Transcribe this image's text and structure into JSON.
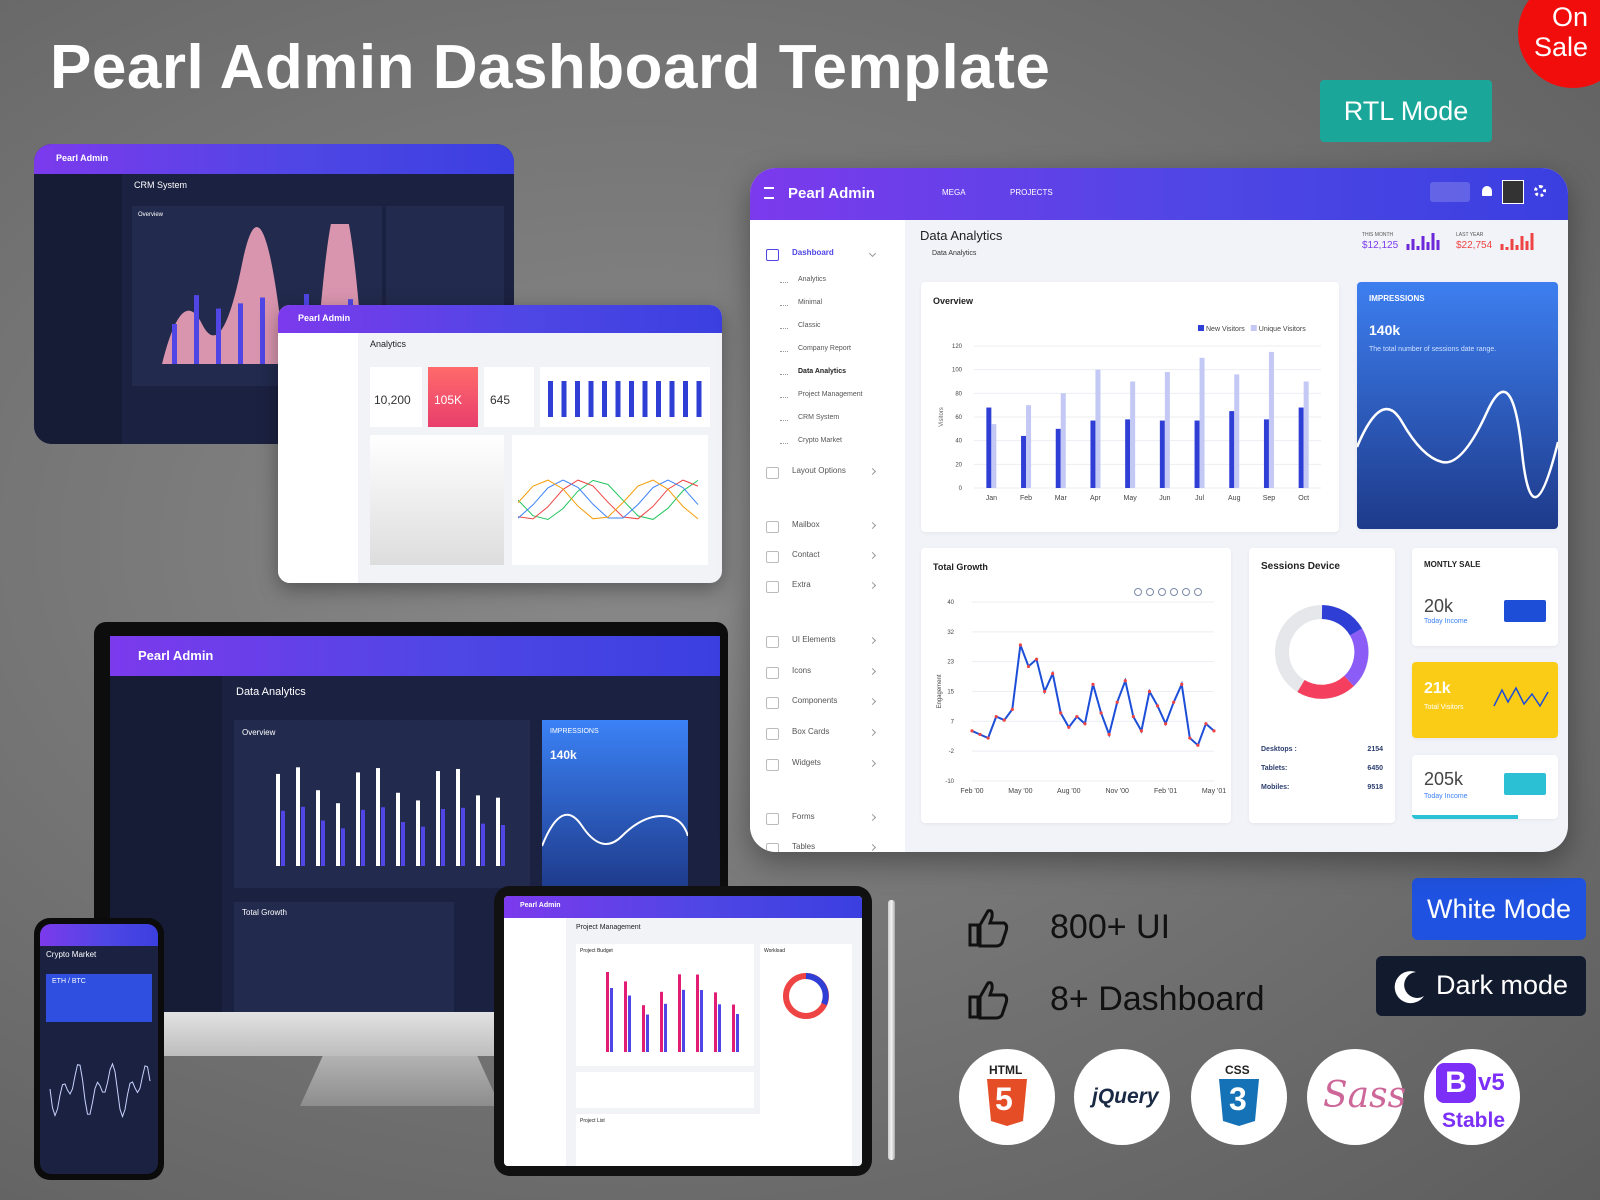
{
  "header": {
    "title": "Pearl Admin Dashboard Template",
    "sale_line1": "On",
    "sale_line2": "Sale"
  },
  "badges": {
    "rtl": "RTL Mode",
    "white": "White Mode",
    "dark": "Dark mode"
  },
  "features": [
    "800+ UI",
    "8+ Dashboard"
  ],
  "tech_logos": {
    "html": "HTML",
    "html_mark": "5",
    "jquery": "jQuery",
    "css": "CSS",
    "css_mark": "3",
    "sass": "Sass",
    "bootstrap": "B",
    "bootstrap_version": "v5",
    "bootstrap_status": "Stable"
  },
  "main_dashboard": {
    "brand": "Pearl Admin",
    "nav": {
      "mega": "MEGA",
      "projects": "PROJECTS"
    },
    "sidebar": [
      "Dashboard",
      "Analytics",
      "Minimal",
      "Classic",
      "Company Report",
      "Data Analytics",
      "Project Management",
      "CRM System",
      "Crypto Market",
      "Layout Options",
      "Mailbox",
      "Contact",
      "Extra",
      "UI Elements",
      "Icons",
      "Components",
      "Box Cards",
      "Widgets",
      "Forms",
      "Tables"
    ],
    "page_title": "Data Analytics",
    "breadcrumb": "Data Analytics",
    "stats": {
      "this_month_label": "THIS MONTH",
      "this_month": "$12,125",
      "last_year_label": "LAST YEAR",
      "last_year": "$22,754"
    },
    "impressions": {
      "title": "IMPRESSIONS",
      "value": "140k",
      "text": "The total number of sessions date range."
    },
    "sessions_device": {
      "title": "Sessions Device",
      "rows": [
        [
          "Desktops :",
          "2154"
        ],
        [
          "Tablets:",
          "6450"
        ],
        [
          "Mobiles:",
          "9518"
        ]
      ]
    },
    "monthly_sale": {
      "title": "MONTLY SALE",
      "cards": [
        [
          "20k",
          "Today Income"
        ],
        [
          "21k",
          "Total Visitors"
        ],
        [
          "205k",
          "Today Income"
        ]
      ]
    }
  },
  "chart_data": [
    {
      "type": "bar",
      "title": "Overview",
      "y_label": "Visitors",
      "categories": [
        "Jan",
        "Feb",
        "Mar",
        "Apr",
        "May",
        "Jun",
        "Jul",
        "Aug",
        "Sep",
        "Oct"
      ],
      "series": [
        {
          "name": "New Visitors",
          "color": "#2f3fd6",
          "values": [
            68,
            44,
            50,
            57,
            58,
            57,
            57,
            65,
            58,
            68
          ]
        },
        {
          "name": "Unique Visitors",
          "color": "#c3c8f4",
          "values": [
            54,
            70,
            80,
            100,
            90,
            98,
            110,
            96,
            115,
            90
          ]
        }
      ],
      "ylim": [
        0,
        120
      ],
      "yticks": [
        0,
        20,
        40,
        60,
        80,
        100,
        120
      ],
      "grid": true
    },
    {
      "type": "line",
      "title": "Total Growth",
      "y_label": "Engagement",
      "categories": [
        "Feb '00",
        null,
        null,
        null,
        null,
        null,
        "May '00",
        null,
        null,
        null,
        null,
        null,
        "Aug '00",
        null,
        null,
        null,
        null,
        null,
        "Nov '00",
        null,
        null,
        null,
        null,
        null,
        "Feb '01",
        null,
        null,
        null,
        null,
        null,
        "May '01"
      ],
      "series": [
        {
          "name": "Engagement",
          "color": "#1d4ed8",
          "values": [
            4,
            3,
            2,
            8,
            7,
            10,
            28,
            22,
            24,
            15,
            20,
            9,
            5,
            8,
            6,
            17,
            9,
            3,
            12,
            18,
            8,
            4,
            15,
            11,
            6,
            12,
            17,
            2,
            0,
            6,
            4
          ]
        }
      ],
      "marker_color": "#ef4444",
      "ylim": [
        -10,
        40
      ],
      "yticks": [
        40,
        {
          "value": 31.67,
          "label": "32"
        },
        {
          "value": 23.33,
          "label": "23"
        },
        15,
        {
          "value": 6.67,
          "label": "7"
        },
        {
          "value": -1.67,
          "label": "-2"
        },
        -10
      ],
      "grid": true
    }
  ],
  "devices": {
    "crm": {
      "brand": "Pearl Admin",
      "title": "CRM System",
      "card": "Overview"
    },
    "analytics": {
      "brand": "Pearl Admin",
      "title": "Analytics",
      "stats": [
        "10,200",
        "105K",
        "645"
      ]
    },
    "desktop": {
      "brand": "Pearl Admin",
      "title": "Data Analytics",
      "overview": "Overview",
      "impressions": "IMPRESSIONS",
      "impressions_value": "140k",
      "growth": "Total Growth"
    },
    "phone": {
      "title": "Crypto Market",
      "pair": "ETH / BTC"
    },
    "tablet": {
      "brand": "Pearl Admin",
      "title": "Project Management",
      "budget": "Project Budget",
      "workload": "Workload",
      "list": "Project List"
    }
  }
}
